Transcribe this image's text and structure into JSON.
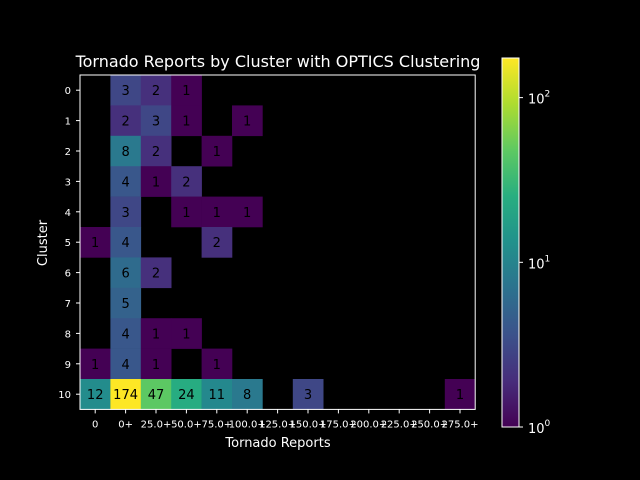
{
  "chart_data": {
    "type": "heatmap",
    "title": "Tornado Reports by Cluster with OPTICS Clustering",
    "xlabel": "Tornado Reports",
    "ylabel": "Cluster",
    "x_ticks": [
      "0",
      "0+",
      "25.0+",
      "50.0+",
      "75.0+",
      "100.0+",
      "125.0+",
      "150.0+",
      "175.0+",
      "200.0+",
      "225.0+",
      "250.0+",
      "275.0+"
    ],
    "y_ticks": [
      "0",
      "1",
      "2",
      "3",
      "4",
      "5",
      "6",
      "7",
      "8",
      "9",
      "10"
    ],
    "values": [
      [
        null,
        3,
        2,
        1,
        null,
        null,
        null,
        null,
        null,
        null,
        null,
        null,
        null
      ],
      [
        null,
        2,
        3,
        1,
        null,
        1,
        null,
        null,
        null,
        null,
        null,
        null,
        null
      ],
      [
        null,
        8,
        2,
        null,
        1,
        null,
        null,
        null,
        null,
        null,
        null,
        null,
        null
      ],
      [
        null,
        4,
        1,
        2,
        null,
        null,
        null,
        null,
        null,
        null,
        null,
        null,
        null
      ],
      [
        null,
        3,
        null,
        1,
        1,
        1,
        null,
        null,
        null,
        null,
        null,
        null,
        null
      ],
      [
        1,
        4,
        null,
        null,
        2,
        null,
        null,
        null,
        null,
        null,
        null,
        null,
        null
      ],
      [
        null,
        6,
        2,
        null,
        null,
        null,
        null,
        null,
        null,
        null,
        null,
        null,
        null
      ],
      [
        null,
        5,
        null,
        null,
        null,
        null,
        null,
        null,
        null,
        null,
        null,
        null,
        null
      ],
      [
        null,
        4,
        1,
        1,
        null,
        null,
        null,
        null,
        null,
        null,
        null,
        null,
        null
      ],
      [
        1,
        4,
        1,
        null,
        1,
        null,
        null,
        null,
        null,
        null,
        null,
        null,
        null
      ],
      [
        12,
        174,
        47,
        24,
        11,
        8,
        null,
        3,
        null,
        null,
        null,
        null,
        1
      ]
    ],
    "colorbar": {
      "scale": "log",
      "colormap": "viridis",
      "ticks": [
        1,
        10,
        100
      ],
      "tick_labels": [
        "10",
        "10",
        "10"
      ],
      "tick_exponents": [
        "0",
        "1",
        "2"
      ],
      "range": [
        1,
        174
      ]
    },
    "background": "#000000",
    "text_color": "#ffffff"
  }
}
